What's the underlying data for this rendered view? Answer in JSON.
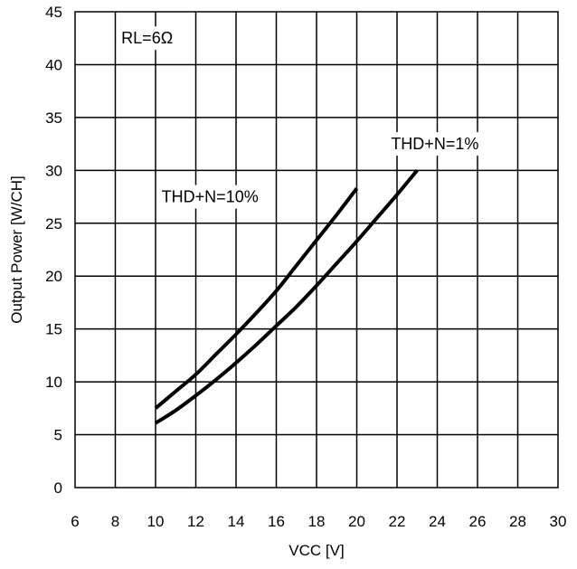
{
  "chart_data": {
    "type": "line",
    "title": "",
    "xlabel": "VCC [V]",
    "ylabel": "Output Power [W/CH]",
    "xlim": [
      6,
      30
    ],
    "ylim": [
      0,
      45
    ],
    "xticks": [
      6,
      8,
      10,
      12,
      14,
      16,
      18,
      20,
      22,
      24,
      26,
      28,
      30
    ],
    "yticks": [
      0,
      5,
      10,
      15,
      20,
      25,
      30,
      35,
      40,
      45
    ],
    "grid": true,
    "legend": "none",
    "annotations": [
      {
        "text": "RL=6Ω",
        "x": 8.3,
        "y": 42.5
      },
      {
        "text": "THD+N=10%",
        "x": 10.3,
        "y": 27.5
      },
      {
        "text": "THD+N=1%",
        "x": 21.7,
        "y": 32.5
      }
    ],
    "series": [
      {
        "label": "THD+N=10%",
        "points": [
          [
            10,
            7.5
          ],
          [
            11,
            9.1
          ],
          [
            12,
            10.7
          ],
          [
            13,
            12.6
          ],
          [
            14,
            14.5
          ],
          [
            15,
            16.5
          ],
          [
            16,
            18.6
          ],
          [
            17,
            21.0
          ],
          [
            18,
            23.4
          ],
          [
            19,
            25.8
          ],
          [
            20,
            28.3
          ]
        ]
      },
      {
        "label": "THD+N=1%",
        "points": [
          [
            10,
            6.1
          ],
          [
            11,
            7.3
          ],
          [
            12,
            8.7
          ],
          [
            13,
            10.2
          ],
          [
            14,
            11.8
          ],
          [
            15,
            13.5
          ],
          [
            16,
            15.3
          ],
          [
            17,
            17.1
          ],
          [
            18,
            19.1
          ],
          [
            19,
            21.2
          ],
          [
            20,
            23.3
          ],
          [
            21,
            25.5
          ],
          [
            22,
            27.7
          ],
          [
            23,
            30.0
          ]
        ]
      }
    ],
    "colors": {
      "line": "#000000",
      "grid": "#000000",
      "background": "#ffffff"
    }
  }
}
